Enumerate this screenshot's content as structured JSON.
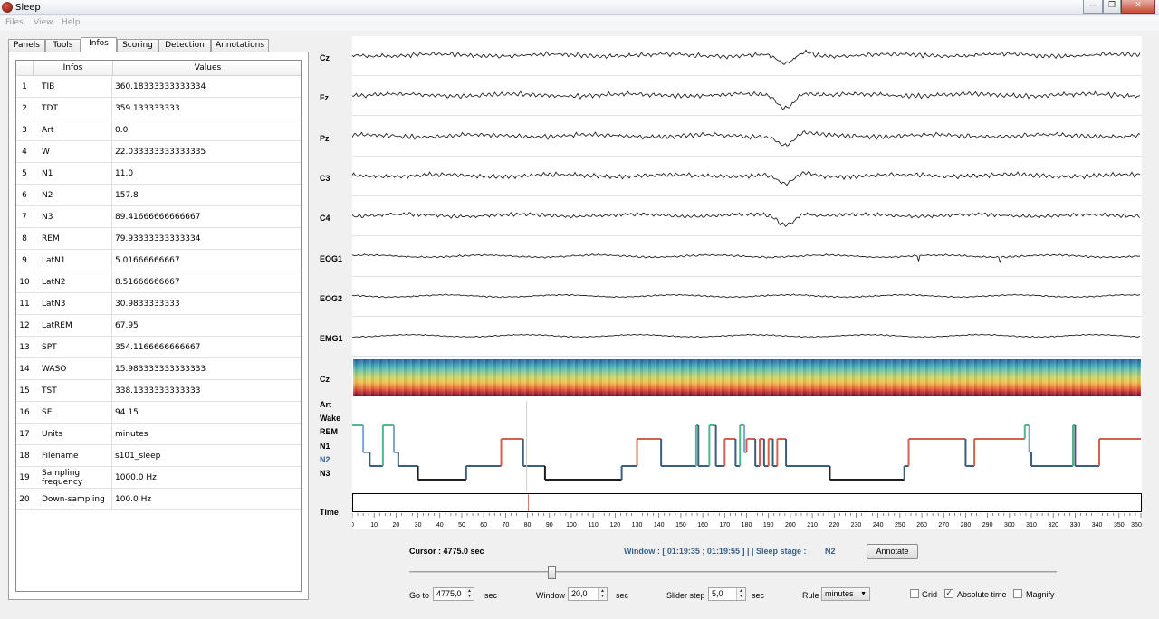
{
  "window": {
    "title": "Sleep",
    "min": "—",
    "max": "❐",
    "close": "✕"
  },
  "menu": [
    "Files",
    "View",
    "Help"
  ],
  "tabs": [
    "Panels",
    "Tools",
    "Infos",
    "Scoring",
    "Detection",
    "Annotations"
  ],
  "table": {
    "headers": [
      "Infos",
      "Values"
    ],
    "rows": [
      [
        "1",
        "TIB",
        "360.18333333333334"
      ],
      [
        "2",
        "TDT",
        "359.133333333"
      ],
      [
        "3",
        "Art",
        "0.0"
      ],
      [
        "4",
        "W",
        "22.033333333333335"
      ],
      [
        "5",
        "N1",
        "11.0"
      ],
      [
        "6",
        "N2",
        "157.8"
      ],
      [
        "7",
        "N3",
        "89.41666666666667"
      ],
      [
        "8",
        "REM",
        "79.93333333333334"
      ],
      [
        "9",
        "LatN1",
        "5.01666666667"
      ],
      [
        "10",
        "LatN2",
        "8.51666666667"
      ],
      [
        "11",
        "LatN3",
        "30.9833333333"
      ],
      [
        "12",
        "LatREM",
        "67.95"
      ],
      [
        "13",
        "SPT",
        "354.1166666666667"
      ],
      [
        "14",
        "WASO",
        "15.983333333333333"
      ],
      [
        "15",
        "TST",
        "338.1333333333333"
      ],
      [
        "16",
        "SE",
        "94.15"
      ],
      [
        "17",
        "Units",
        "minutes"
      ],
      [
        "18",
        "Filename",
        "s101_sleep"
      ],
      [
        "19",
        "Sampling frequency",
        "1000.0 Hz"
      ],
      [
        "20",
        "Down-sampling",
        "100.0 Hz"
      ]
    ]
  },
  "channels": [
    "Cz",
    "Fz",
    "Pz",
    "C3",
    "C4",
    "EOG1",
    "EOG2",
    "EMG1"
  ],
  "spectrogram_label": "Cz",
  "hypnogram": {
    "stages": [
      "Art",
      "Wake",
      "REM",
      "N1",
      "N2",
      "N3"
    ],
    "colors": {
      "Wake": "#4eb88a",
      "REM": "#d2614f",
      "N1": "#7fa6cf",
      "N2": "#3c5d7c",
      "N3": "#202020"
    },
    "cursor_minutes": 79.6,
    "total_minutes": 360
  },
  "time_axis": {
    "label": "Time",
    "ticks": [
      "0",
      "10",
      "20",
      "30",
      "40",
      "50",
      "60",
      "70",
      "80",
      "90",
      "100",
      "110",
      "120",
      "130",
      "140",
      "150",
      "160",
      "170",
      "180",
      "190",
      "200",
      "210",
      "220",
      "230",
      "240",
      "250",
      "260",
      "270",
      "280",
      "290",
      "300",
      "310",
      "320",
      "330",
      "340",
      "350",
      "360"
    ]
  },
  "status": {
    "cursor": "Cursor : 4775.0 sec",
    "window_text": "Window : [ 01:19:35 ; 01:19:55 ] | | Sleep stage :",
    "sleep_stage": "N2",
    "annotate": "Annotate"
  },
  "slider": {
    "value_fraction": 0.22
  },
  "controls": {
    "goto_label": "Go to",
    "goto_value": "4775,0",
    "goto_unit": "sec",
    "window_label": "Window",
    "window_value": "20,0",
    "window_unit": "sec",
    "step_label": "Slider step",
    "step_value": "5,0",
    "step_unit": "sec",
    "rule_label": "Rule",
    "rule_value": "minutes",
    "grid_label": "Grid",
    "grid_checked": false,
    "abs_label": "Absolute time",
    "abs_checked": true,
    "magnify_label": "Magnify",
    "magnify_checked": false
  }
}
